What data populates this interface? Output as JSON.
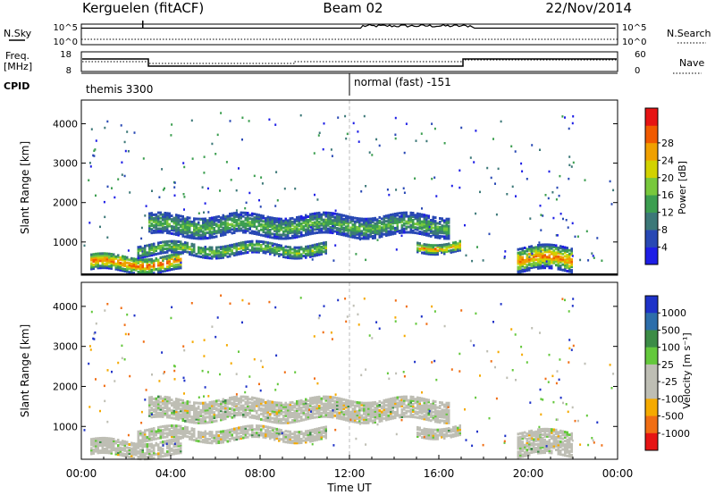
{
  "header": {
    "station": "Kerguelen (fitACF)",
    "beam": "Beam 02",
    "date": "22/Nov/2014"
  },
  "noise_panel": {
    "left_label": "N.Sky",
    "right_label": "N.Search",
    "left_ticks": [
      "10^5",
      "10^0"
    ],
    "right_ticks": [
      "10^5",
      "10^0"
    ]
  },
  "freq_panel": {
    "left_label_1": "Freq.",
    "left_label_2": "[MHz]",
    "right_label": "Nave",
    "left_ticks": [
      "18",
      "8"
    ],
    "right_ticks": [
      "60",
      "0"
    ]
  },
  "cpid_panel": {
    "label": "CPID",
    "mode_1": "themis 3300",
    "mode_2": "normal (fast) -151"
  },
  "colors": {
    "power": [
      "#1e1ee6",
      "#2848b4",
      "#3c7878",
      "#3c9e50",
      "#78c83c",
      "#d2d200",
      "#f0a000",
      "#f05a00",
      "#e61414"
    ],
    "velocity": [
      "#1e32c8",
      "#2d6eaa",
      "#3c8c46",
      "#64c83c",
      "#bebeb4",
      "#bebeb4",
      "#f5aa00",
      "#f06e14",
      "#e61414"
    ],
    "ground_scatter": "#bebeb4"
  },
  "chart_data": [
    {
      "type": "heatmap",
      "name": "power",
      "ylabel": "Slant Range [km]",
      "yticks": [
        "1000",
        "2000",
        "3000",
        "4000"
      ],
      "ylim": [
        180,
        4600
      ],
      "colorbar_label": "Power [dB]",
      "colorbar_ticks": [
        "4",
        "8",
        "12",
        "16",
        "20",
        "24",
        "28"
      ],
      "colorbar_range": [
        0,
        32
      ],
      "echo_regions_hours_km_db": [
        {
          "t": [
            0.4,
            4.5
          ],
          "r": [
            300,
            700
          ],
          "db": 27
        },
        {
          "t": [
            2.5,
            11.0
          ],
          "r": [
            700,
            1000
          ],
          "db": 17
        },
        {
          "t": [
            3.0,
            16.5
          ],
          "r": [
            1200,
            1700
          ],
          "db": 15
        },
        {
          "t": [
            15.0,
            17.0
          ],
          "r": [
            800,
            1050
          ],
          "db": 24
        },
        {
          "t": [
            19.5,
            22.0
          ],
          "r": [
            300,
            900
          ],
          "db": 26
        }
      ]
    },
    {
      "type": "heatmap",
      "name": "velocity",
      "ylabel": "Slant Range [km]",
      "yticks": [
        "1000",
        "2000",
        "3000",
        "4000"
      ],
      "ylim": [
        180,
        4600
      ],
      "colorbar_label": "Velocity [m s⁻¹]",
      "colorbar_ticks": [
        "1000",
        "500",
        "100",
        "25",
        "-25",
        "-100",
        "-500",
        "-1000"
      ],
      "xlabel": "Time UT",
      "xticks": [
        "00:00",
        "04:00",
        "08:00",
        "12:00",
        "16:00",
        "20:00",
        "00:00"
      ],
      "xlim_hours": [
        0,
        24
      ]
    }
  ]
}
